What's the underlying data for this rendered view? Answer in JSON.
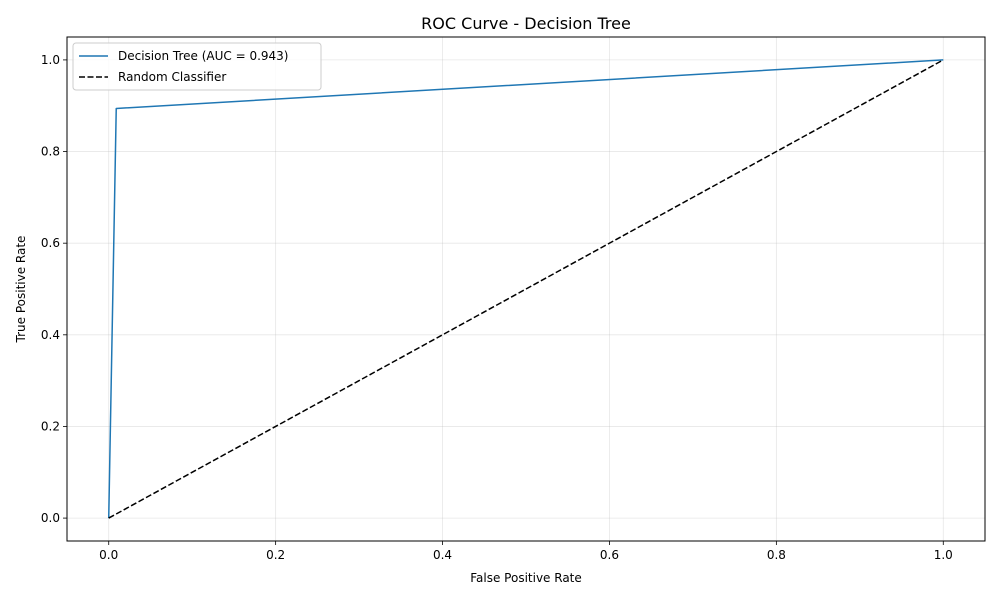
{
  "chart_data": {
    "type": "line",
    "title": "ROC Curve - Decision Tree",
    "xlabel": "False Positive Rate",
    "ylabel": "True Positive Rate",
    "xlim": [
      -0.05,
      1.05
    ],
    "ylim": [
      -0.05,
      1.05
    ],
    "xticks": [
      0.0,
      0.2,
      0.4,
      0.6,
      0.8,
      1.0
    ],
    "xtick_labels": [
      "0.0",
      "0.2",
      "0.4",
      "0.6",
      "0.8",
      "1.0"
    ],
    "yticks": [
      0.0,
      0.2,
      0.4,
      0.6,
      0.8,
      1.0
    ],
    "ytick_labels": [
      "0.0",
      "0.2",
      "0.4",
      "0.6",
      "0.8",
      "1.0"
    ],
    "grid": true,
    "legend_position": "top-left",
    "series": [
      {
        "name": "Decision Tree (AUC = 0.943)",
        "color": "#1f77b4",
        "style": "solid",
        "x": [
          0.0,
          0.009,
          1.0
        ],
        "y": [
          0.0,
          0.894,
          1.0
        ]
      },
      {
        "name": "Random Classifier",
        "color": "#000000",
        "style": "dashed",
        "x": [
          0.0,
          1.0
        ],
        "y": [
          0.0,
          1.0
        ]
      }
    ]
  }
}
